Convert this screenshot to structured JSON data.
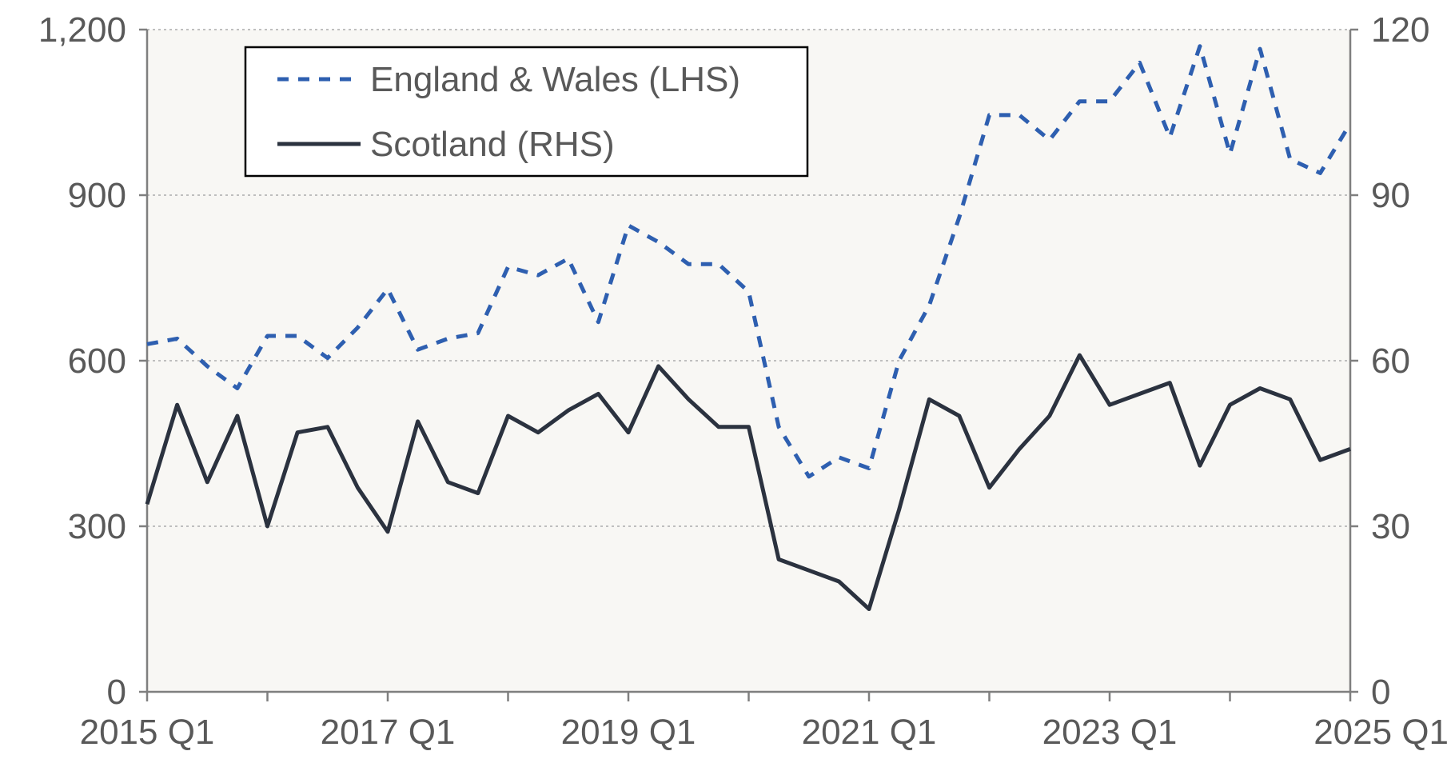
{
  "chart_data": {
    "type": "line",
    "x": [
      "2015 Q1",
      "2015 Q2",
      "2015 Q3",
      "2015 Q4",
      "2016 Q1",
      "2016 Q2",
      "2016 Q3",
      "2016 Q4",
      "2017 Q1",
      "2017 Q2",
      "2017 Q3",
      "2017 Q4",
      "2018 Q1",
      "2018 Q2",
      "2018 Q3",
      "2018 Q4",
      "2019 Q1",
      "2019 Q2",
      "2019 Q3",
      "2019 Q4",
      "2020 Q1",
      "2020 Q2",
      "2020 Q3",
      "2020 Q4",
      "2021 Q1",
      "2021 Q2",
      "2021 Q3",
      "2021 Q4",
      "2022 Q1",
      "2022 Q2",
      "2022 Q3",
      "2022 Q4",
      "2023 Q1",
      "2023 Q2",
      "2023 Q3",
      "2023 Q4",
      "2024 Q1",
      "2024 Q2",
      "2024 Q3",
      "2024 Q4",
      "2025 Q1"
    ],
    "x_tick_labels": [
      "2015 Q1",
      "2017 Q1",
      "2019 Q1",
      "2021 Q1",
      "2023 Q1",
      "2025 Q1"
    ],
    "y_left": {
      "ylim": [
        0,
        1200
      ],
      "ticks": [
        "0",
        "300",
        "600",
        "900",
        "1,200"
      ]
    },
    "y_right": {
      "ylim": [
        0,
        120
      ],
      "ticks": [
        "0",
        "30",
        "60",
        "90",
        "120"
      ]
    },
    "series": [
      {
        "name": "England & Wales (LHS)",
        "axis": "left",
        "style": "dashed",
        "color": "#2E5FB0",
        "values": [
          630,
          640,
          590,
          550,
          645,
          645,
          605,
          660,
          730,
          620,
          640,
          650,
          770,
          755,
          785,
          670,
          845,
          815,
          775,
          775,
          725,
          480,
          390,
          425,
          405,
          600,
          700,
          860,
          1045,
          1045,
          1000,
          1070,
          1070,
          1140,
          1005,
          1170,
          975,
          1165,
          965,
          940,
          1030
        ]
      },
      {
        "name": "Scotland (RHS)",
        "axis": "right",
        "style": "solid",
        "color": "#2B323F",
        "values": [
          34,
          52,
          38,
          50,
          30,
          47,
          48,
          37,
          29,
          49,
          38,
          36,
          50,
          47,
          51,
          54,
          47,
          59,
          53,
          48,
          48,
          24,
          22,
          20,
          15,
          33,
          53,
          50,
          37,
          44,
          50,
          61,
          52,
          54,
          56,
          41,
          52,
          55,
          53,
          42,
          44
        ]
      }
    ],
    "legend": {
      "position": "top-left"
    }
  }
}
